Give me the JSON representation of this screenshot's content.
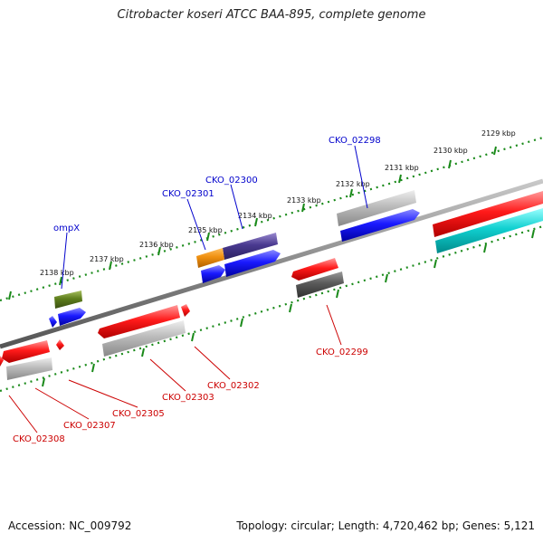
{
  "title": "Citrobacter koseri ATCC BAA-895, complete genome",
  "footer": {
    "accession": "Accession: NC_009792",
    "summary": "Topology: circular; Length: 4,720,462 bp; Genes: 5,121"
  },
  "scale_ticks": [
    "2129 kbp",
    "2130 kbp",
    "2131 kbp",
    "2132 kbp",
    "2133 kbp",
    "2134 kbp",
    "2135 kbp",
    "2136 kbp",
    "2137 kbp",
    "2138 kbp"
  ],
  "genes_top": [
    {
      "label": "CKO_02298",
      "color": "#0000cc"
    },
    {
      "label": "CKO_02300",
      "color": "#0000cc"
    },
    {
      "label": "CKO_02301",
      "color": "#0000cc"
    },
    {
      "label": "ompX",
      "color": "#0000cc"
    }
  ],
  "genes_bottom": [
    {
      "label": "CKO_02299",
      "color": "#cc0000"
    },
    {
      "label": "CKO_02302",
      "color": "#cc0000"
    },
    {
      "label": "CKO_02303",
      "color": "#cc0000"
    },
    {
      "label": "CKO_02305",
      "color": "#cc0000"
    },
    {
      "label": "CKO_02307",
      "color": "#cc0000"
    },
    {
      "label": "CKO_02308",
      "color": "#cc0000"
    }
  ],
  "colors": {
    "backbone": "#888888",
    "tick": "#1a8a1a",
    "forward_cds": "#0000ee",
    "reverse_cds": "#ee0000",
    "gene_gray": "#b0b0b0",
    "gene_dark": "#555555",
    "olive": "#5a7a1a",
    "orange": "#f08c00",
    "purple": "#4a3a8a",
    "cyan": "#00c8c8"
  }
}
